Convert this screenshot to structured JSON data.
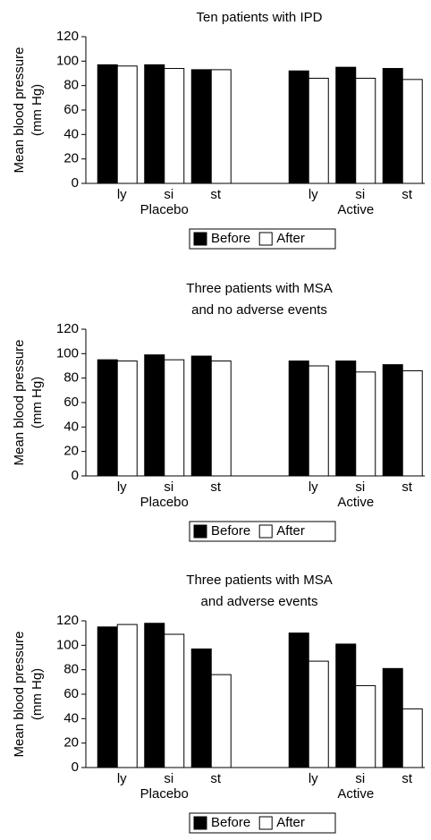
{
  "chart_data": [
    {
      "type": "bar",
      "title": [
        "Ten patients with IPD"
      ],
      "ylabel": [
        "Mean blood pressure",
        "(mm Hg)"
      ],
      "groups": [
        "Placebo",
        "Active"
      ],
      "categories": [
        "ly",
        "si",
        "st",
        "ly",
        "si",
        "st"
      ],
      "series": [
        {
          "name": "Before",
          "color": "#000000",
          "values": [
            97,
            97,
            93,
            92,
            95,
            94
          ]
        },
        {
          "name": "After",
          "color": "#ffffff",
          "values": [
            96,
            94,
            93,
            86,
            86,
            85
          ]
        }
      ],
      "ylim": [
        0,
        120
      ],
      "yticks": [
        0,
        20,
        40,
        60,
        80,
        100,
        120
      ]
    },
    {
      "type": "bar",
      "title": [
        "Three patients with MSA",
        "and no adverse events"
      ],
      "ylabel": [
        "Mean blood pressure",
        "(mm Hg)"
      ],
      "groups": [
        "Placebo",
        "Active"
      ],
      "categories": [
        "ly",
        "si",
        "st",
        "ly",
        "si",
        "st"
      ],
      "series": [
        {
          "name": "Before",
          "color": "#000000",
          "values": [
            95,
            99,
            98,
            94,
            94,
            91
          ]
        },
        {
          "name": "After",
          "color": "#ffffff",
          "values": [
            94,
            95,
            94,
            90,
            85,
            86
          ]
        }
      ],
      "ylim": [
        0,
        120
      ],
      "yticks": [
        0,
        20,
        40,
        60,
        80,
        100,
        120
      ]
    },
    {
      "type": "bar",
      "title": [
        "Three patients with MSA",
        "and adverse events"
      ],
      "ylabel": [
        "Mean blood pressure",
        "(mm Hg)"
      ],
      "groups": [
        "Placebo",
        "Active"
      ],
      "categories": [
        "ly",
        "si",
        "st",
        "ly",
        "si",
        "st"
      ],
      "series": [
        {
          "name": "Before",
          "color": "#000000",
          "values": [
            115,
            118,
            97,
            110,
            101,
            81
          ]
        },
        {
          "name": "After",
          "color": "#ffffff",
          "values": [
            117,
            109,
            76,
            87,
            67,
            48
          ]
        }
      ],
      "ylim": [
        0,
        120
      ],
      "yticks": [
        0,
        20,
        40,
        60,
        80,
        100,
        120
      ]
    }
  ]
}
